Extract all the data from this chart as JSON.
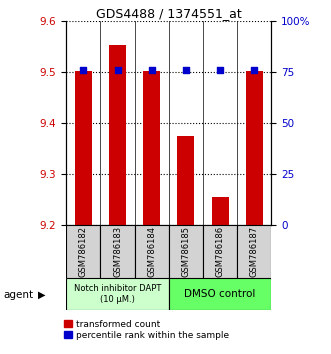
{
  "title": "GDS4488 / 1374551_at",
  "categories": [
    "GSM786182",
    "GSM786183",
    "GSM786184",
    "GSM786185",
    "GSM786186",
    "GSM786187"
  ],
  "red_values": [
    9.503,
    9.554,
    9.503,
    9.375,
    9.255,
    9.503
  ],
  "blue_values": [
    76,
    76,
    76,
    76,
    76,
    76
  ],
  "ylim_left": [
    9.2,
    9.6
  ],
  "ylim_right": [
    0,
    100
  ],
  "yticks_left": [
    9.2,
    9.3,
    9.4,
    9.5,
    9.6
  ],
  "yticks_right": [
    0,
    25,
    50,
    75,
    100
  ],
  "ytick_labels_right": [
    "0",
    "25",
    "50",
    "75",
    "100%"
  ],
  "group1_label": "Notch inhibitor DAPT\n(10 μM.)",
  "group2_label": "DMSO control",
  "group1_color": "#ccffcc",
  "group2_color": "#66ff66",
  "group1_indices": [
    0,
    1,
    2
  ],
  "group2_indices": [
    3,
    4,
    5
  ],
  "bar_color_red": "#cc0000",
  "dot_color_blue": "#0000cc",
  "agent_label": "agent",
  "legend_red": "transformed count",
  "legend_blue": "percentile rank within the sample",
  "tick_label_color_left": "#cc0000",
  "tick_label_color_right": "#0000cc"
}
